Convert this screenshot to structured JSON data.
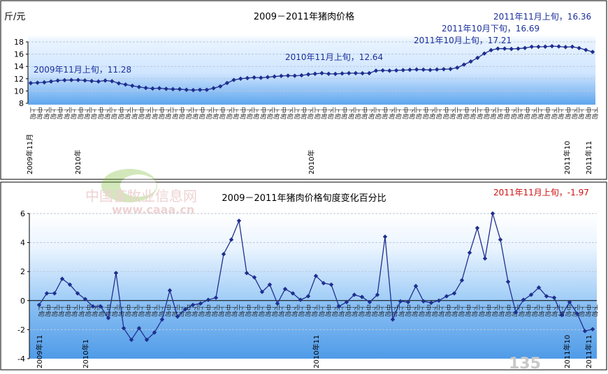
{
  "chart_data": [
    {
      "type": "line",
      "title": "2009－2011年猪肉价格",
      "ylabel": "斤/元",
      "xlabel": "",
      "ylim": [
        8,
        18
      ],
      "yticks": [
        8,
        10,
        12,
        14,
        16,
        18
      ],
      "grid": true,
      "x_year_labels": [
        "2009年11月",
        "2010年",
        "2010年",
        "2011年10",
        "2011年11"
      ],
      "x_tick_text": "上旬 中旬 下旬",
      "series": [
        {
          "color": "#1f2f8f",
          "values": [
            11.28,
            11.35,
            11.41,
            11.55,
            11.7,
            11.76,
            11.78,
            11.79,
            11.72,
            11.62,
            11.55,
            11.7,
            11.6,
            11.25,
            11.05,
            10.85,
            10.65,
            10.5,
            10.4,
            10.45,
            10.35,
            10.3,
            10.3,
            10.2,
            10.15,
            10.2,
            10.2,
            10.45,
            10.75,
            11.3,
            11.8,
            12.0,
            12.1,
            12.2,
            12.15,
            12.25,
            12.35,
            12.45,
            12.5,
            12.48,
            12.55,
            12.7,
            12.8,
            12.9,
            12.8,
            12.78,
            12.85,
            12.9,
            12.9,
            12.88,
            12.9,
            13.3,
            13.35,
            13.3,
            13.35,
            13.4,
            13.45,
            13.5,
            13.48,
            13.42,
            13.5,
            13.55,
            13.58,
            13.8,
            14.3,
            14.8,
            15.4,
            16.1,
            16.65,
            16.9,
            16.9,
            16.85,
            16.9,
            17.0,
            17.2,
            17.2,
            17.22,
            17.3,
            17.25,
            17.15,
            17.21,
            16.99,
            16.69,
            16.36
          ]
        }
      ],
      "annotations": [
        "2009年11月上旬，11.28",
        "2010年11月上旬，12.64",
        "2011年10月上旬，17.21",
        "2011年10月下旬，16.69",
        "2011年11月上旬，16.36"
      ]
    },
    {
      "type": "line",
      "title": "2009－2011年猪肉价格旬度变化百分比",
      "ylabel": "",
      "xlabel": "",
      "ylim": [
        -4,
        6
      ],
      "yticks": [
        -4,
        -2,
        0,
        2,
        4,
        6
      ],
      "grid": true,
      "x_year_labels": [
        "2009年11",
        "2010年1",
        "2010年11",
        "2011年10",
        "2011年11"
      ],
      "x_tick_text": "上旬 中旬 下旬",
      "series": [
        {
          "color": "#1f2f8f",
          "values": [
            -0.3,
            0.5,
            0.5,
            1.5,
            1.1,
            0.5,
            0.1,
            -0.4,
            -0.4,
            -1.2,
            1.9,
            -1.9,
            -2.7,
            -1.9,
            -2.7,
            -2.2,
            -1.3,
            0.7,
            -1.1,
            -0.6,
            -0.3,
            -0.2,
            0.05,
            0.2,
            3.2,
            4.2,
            5.5,
            1.9,
            1.6,
            0.6,
            1.1,
            -0.2,
            0.8,
            0.5,
            0.05,
            0.3,
            1.7,
            1.2,
            1.1,
            -0.4,
            -0.1,
            0.4,
            0.25,
            -0.1,
            0.4,
            4.4,
            -1.3,
            -0.05,
            -0.1,
            1.0,
            -0.05,
            -0.15,
            0.0,
            0.3,
            0.5,
            1.4,
            3.3,
            5.0,
            2.9,
            6.0,
            4.2,
            1.3,
            -0.8,
            0.05,
            0.4,
            0.9,
            0.3,
            0.2,
            -1.0,
            -0.1,
            -0.9,
            -2.1,
            -1.97
          ]
        }
      ],
      "annotations": [
        "2011年11月上旬，-1.97"
      ]
    }
  ],
  "watermark": {
    "line1": "中国畜牧业信息网",
    "line2": "www.caaa.cn"
  },
  "corner_logo": "135",
  "colors": {
    "line": "#1f2f8f",
    "band_dark": "#5ea6ee",
    "band_light": "#e4f1ff",
    "annotation_blue": "#1a2f9c",
    "annotation_red": "#d01010"
  }
}
